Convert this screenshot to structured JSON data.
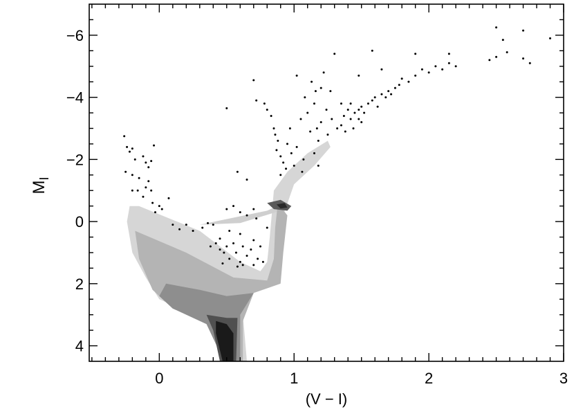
{
  "chart_data": {
    "type": "scatter",
    "xlabel": "(V − I)",
    "ylabel": "M",
    "ylabel_sub": "I",
    "xlim": [
      -0.52,
      3.0
    ],
    "ylim": [
      4.5,
      -7.0
    ],
    "y_inverted": true,
    "xticks": [
      0,
      1,
      2,
      3
    ],
    "yticks": [
      {
        "value": -6,
        "label": "−6"
      },
      {
        "value": -4,
        "label": "−4"
      },
      {
        "value": -2,
        "label": "−2"
      },
      0,
      2,
      4
    ],
    "xminorticks": [
      -0.5,
      -0.4,
      -0.3,
      -0.2,
      -0.1,
      0.1,
      0.2,
      0.3,
      0.4,
      0.5,
      0.6,
      0.7,
      0.8,
      0.9,
      1.1,
      1.2,
      1.3,
      1.4,
      1.5,
      1.6,
      1.7,
      1.8,
      1.9,
      2.1,
      2.2,
      2.3,
      2.4,
      2.5,
      2.6,
      2.7,
      2.8,
      2.9
    ],
    "yminorticks": [
      -6.5,
      -5.5,
      -5,
      -4.5,
      -3.5,
      -3,
      -2.5,
      -1.5,
      -1,
      -0.5,
      0.5,
      1,
      1.5,
      2.5,
      3,
      3.5
    ],
    "regions": [
      {
        "color": "#d6d6d6",
        "x": [
          -0.22,
          -0.15,
          0.3,
          0.6,
          0.75,
          0.8,
          0.82,
          0.85,
          0.95,
          1.1,
          1.25,
          1.27,
          1.15,
          1.0,
          0.92,
          0.9,
          0.88,
          0.88,
          0.8,
          0.65,
          0.62,
          0.65,
          0.5,
          0.4,
          0.2,
          0.0,
          -0.1,
          -0.2,
          -0.24
        ],
        "y": [
          -0.5,
          -0.5,
          0.3,
          1.3,
          1.6,
          1.3,
          0.5,
          -1.0,
          -1.6,
          -2.2,
          -2.6,
          -2.4,
          -1.8,
          -1.2,
          -0.2,
          0.6,
          1.3,
          1.8,
          2.0,
          2.2,
          3.0,
          4.5,
          4.5,
          3.2,
          2.9,
          2.5,
          1.8,
          1.0,
          0.0
        ]
      },
      {
        "color": "#cfcfcf",
        "x": [
          0.3,
          0.8,
          0.95,
          0.9,
          0.6
        ],
        "y": [
          0.1,
          -0.35,
          -0.65,
          -0.35,
          0.05
        ]
      },
      {
        "color": "#b4b4b4",
        "x": [
          -0.18,
          0.2,
          0.55,
          0.8,
          0.85,
          0.86,
          0.88,
          0.95,
          0.92,
          0.9,
          0.7,
          0.62,
          0.62,
          0.5,
          0.38,
          0.1,
          -0.05,
          -0.15
        ],
        "y": [
          0.3,
          1.0,
          1.8,
          1.9,
          1.2,
          0.2,
          -0.6,
          -0.2,
          1.0,
          2.0,
          2.3,
          3.2,
          4.5,
          4.5,
          3.3,
          2.8,
          2.2,
          1.2
        ]
      },
      {
        "color": "#8e8e8e",
        "x": [
          0.05,
          0.3,
          0.5,
          0.7,
          0.6,
          0.6,
          0.48,
          0.35,
          0.1,
          0.0
        ],
        "y": [
          2.0,
          2.2,
          2.4,
          2.3,
          3.0,
          4.5,
          4.5,
          3.3,
          2.8,
          2.4
        ]
      },
      {
        "color": "#5a5a5a",
        "x": [
          0.8,
          0.9,
          0.98,
          0.95,
          0.85
        ],
        "y": [
          -0.6,
          -0.7,
          -0.5,
          -0.35,
          -0.4
        ]
      },
      {
        "color": "#505050",
        "x": [
          0.35,
          0.5,
          0.58,
          0.57,
          0.45,
          0.4
        ],
        "y": [
          3.0,
          3.1,
          3.1,
          4.5,
          4.5,
          3.5
        ]
      },
      {
        "color": "#2a2a2a",
        "x": [
          0.87,
          0.93,
          0.95,
          0.9
        ],
        "y": [
          -0.55,
          -0.6,
          -0.45,
          -0.42
        ]
      },
      {
        "color": "#1a1a1a",
        "x": [
          0.42,
          0.5,
          0.55,
          0.55,
          0.47,
          0.42
        ],
        "y": [
          3.2,
          3.3,
          3.6,
          4.5,
          4.5,
          3.6
        ]
      }
    ],
    "points": {
      "color": "#000000",
      "x": [
        -0.26,
        -0.24,
        -0.22,
        -0.2,
        -0.18,
        -0.12,
        -0.1,
        -0.08,
        -0.06,
        -0.04,
        -0.25,
        -0.2,
        -0.15,
        -0.1,
        -0.08,
        -0.06,
        -0.2,
        -0.16,
        -0.12,
        -0.05,
        0.0,
        0.02,
        0.07,
        -0.03,
        0.1,
        0.15,
        0.2,
        0.25,
        0.32,
        0.36,
        0.4,
        0.42,
        0.45,
        0.48,
        0.5,
        0.52,
        0.55,
        0.57,
        0.6,
        0.62,
        0.65,
        0.68,
        0.7,
        0.73,
        0.75,
        0.77,
        0.47,
        0.58,
        0.5,
        0.55,
        0.6,
        0.65,
        0.7,
        0.72,
        0.52,
        0.6,
        0.7,
        0.8,
        0.62,
        0.45,
        0.38,
        0.5,
        0.58,
        0.65,
        0.7,
        0.72,
        0.78,
        0.8,
        0.83,
        0.85,
        0.86,
        0.88,
        0.87,
        0.9,
        0.92,
        0.94,
        0.9,
        0.95,
        0.97,
        0.98,
        1.0,
        1.02,
        1.05,
        1.07,
        1.08,
        1.1,
        1.12,
        1.13,
        1.15,
        1.16,
        1.17,
        1.18,
        1.2,
        1.2,
        1.22,
        1.24,
        1.25,
        1.27,
        1.28,
        1.3,
        1.32,
        1.35,
        1.37,
        1.38,
        1.4,
        1.02,
        1.06,
        1.15,
        1.18,
        1.42,
        1.45,
        1.48,
        1.5,
        1.52,
        1.55,
        1.58,
        1.6,
        1.62,
        1.65,
        1.68,
        1.7,
        1.72,
        1.75,
        1.78,
        1.8,
        1.85,
        1.9,
        1.95,
        2.0,
        2.05,
        2.1,
        2.15,
        2.2,
        1.48,
        1.58,
        1.65,
        1.9,
        2.15,
        2.45,
        2.5,
        2.5,
        2.55,
        2.58,
        2.7,
        2.7,
        2.75,
        2.9,
        1.48,
        1.5,
        1.44,
        1.42,
        1.35
      ],
      "y": [
        -2.75,
        -2.4,
        -2.25,
        -2.35,
        -2.0,
        -2.1,
        -1.9,
        -1.75,
        -1.95,
        -2.45,
        -1.6,
        -1.5,
        -1.4,
        -1.1,
        -1.3,
        -1.0,
        -1.0,
        -1.0,
        -0.8,
        -0.6,
        -0.5,
        -0.4,
        -0.75,
        -0.3,
        0.1,
        0.25,
        0.1,
        0.3,
        0.2,
        0.05,
        0.1,
        0.7,
        0.9,
        1.0,
        0.8,
        1.2,
        0.7,
        1.0,
        1.3,
        0.8,
        1.1,
        0.9,
        1.4,
        1.2,
        0.8,
        1.3,
        1.35,
        1.45,
        -0.4,
        -0.5,
        -0.3,
        -0.2,
        -0.4,
        -0.1,
        0.3,
        0.4,
        0.6,
        0.2,
        1.4,
        0.55,
        0.8,
        -3.65,
        -1.6,
        -1.35,
        -4.55,
        -3.9,
        -3.8,
        -3.6,
        -3.4,
        -3.0,
        -2.8,
        -2.6,
        -2.3,
        -2.1,
        -1.9,
        -1.7,
        -1.5,
        -2.5,
        -3.0,
        -2.2,
        -1.8,
        -2.4,
        -3.3,
        -2.0,
        -4.0,
        -3.5,
        -2.9,
        -4.5,
        -3.8,
        -4.2,
        -3.0,
        -2.6,
        -4.3,
        -3.2,
        -4.8,
        -3.6,
        -2.8,
        -4.2,
        -3.3,
        -5.4,
        -3.0,
        -3.8,
        -3.4,
        -2.9,
        -3.6,
        -4.7,
        -1.6,
        -2.2,
        -1.8,
        -3.3,
        -3.5,
        -3.6,
        -3.7,
        -3.5,
        -3.8,
        -3.9,
        -4.0,
        -3.7,
        -4.1,
        -4.0,
        -4.2,
        -4.1,
        -4.3,
        -4.4,
        -4.6,
        -4.5,
        -4.7,
        -4.9,
        -4.8,
        -5.0,
        -4.9,
        -5.1,
        -5.0,
        -4.7,
        -5.5,
        -4.9,
        -5.4,
        -5.4,
        -5.2,
        -5.3,
        -6.25,
        -5.85,
        -5.45,
        -6.15,
        -5.25,
        -5.1,
        -5.9,
        -3.3,
        -3.2,
        -3.0,
        -3.8,
        -3.1
      ]
    }
  }
}
